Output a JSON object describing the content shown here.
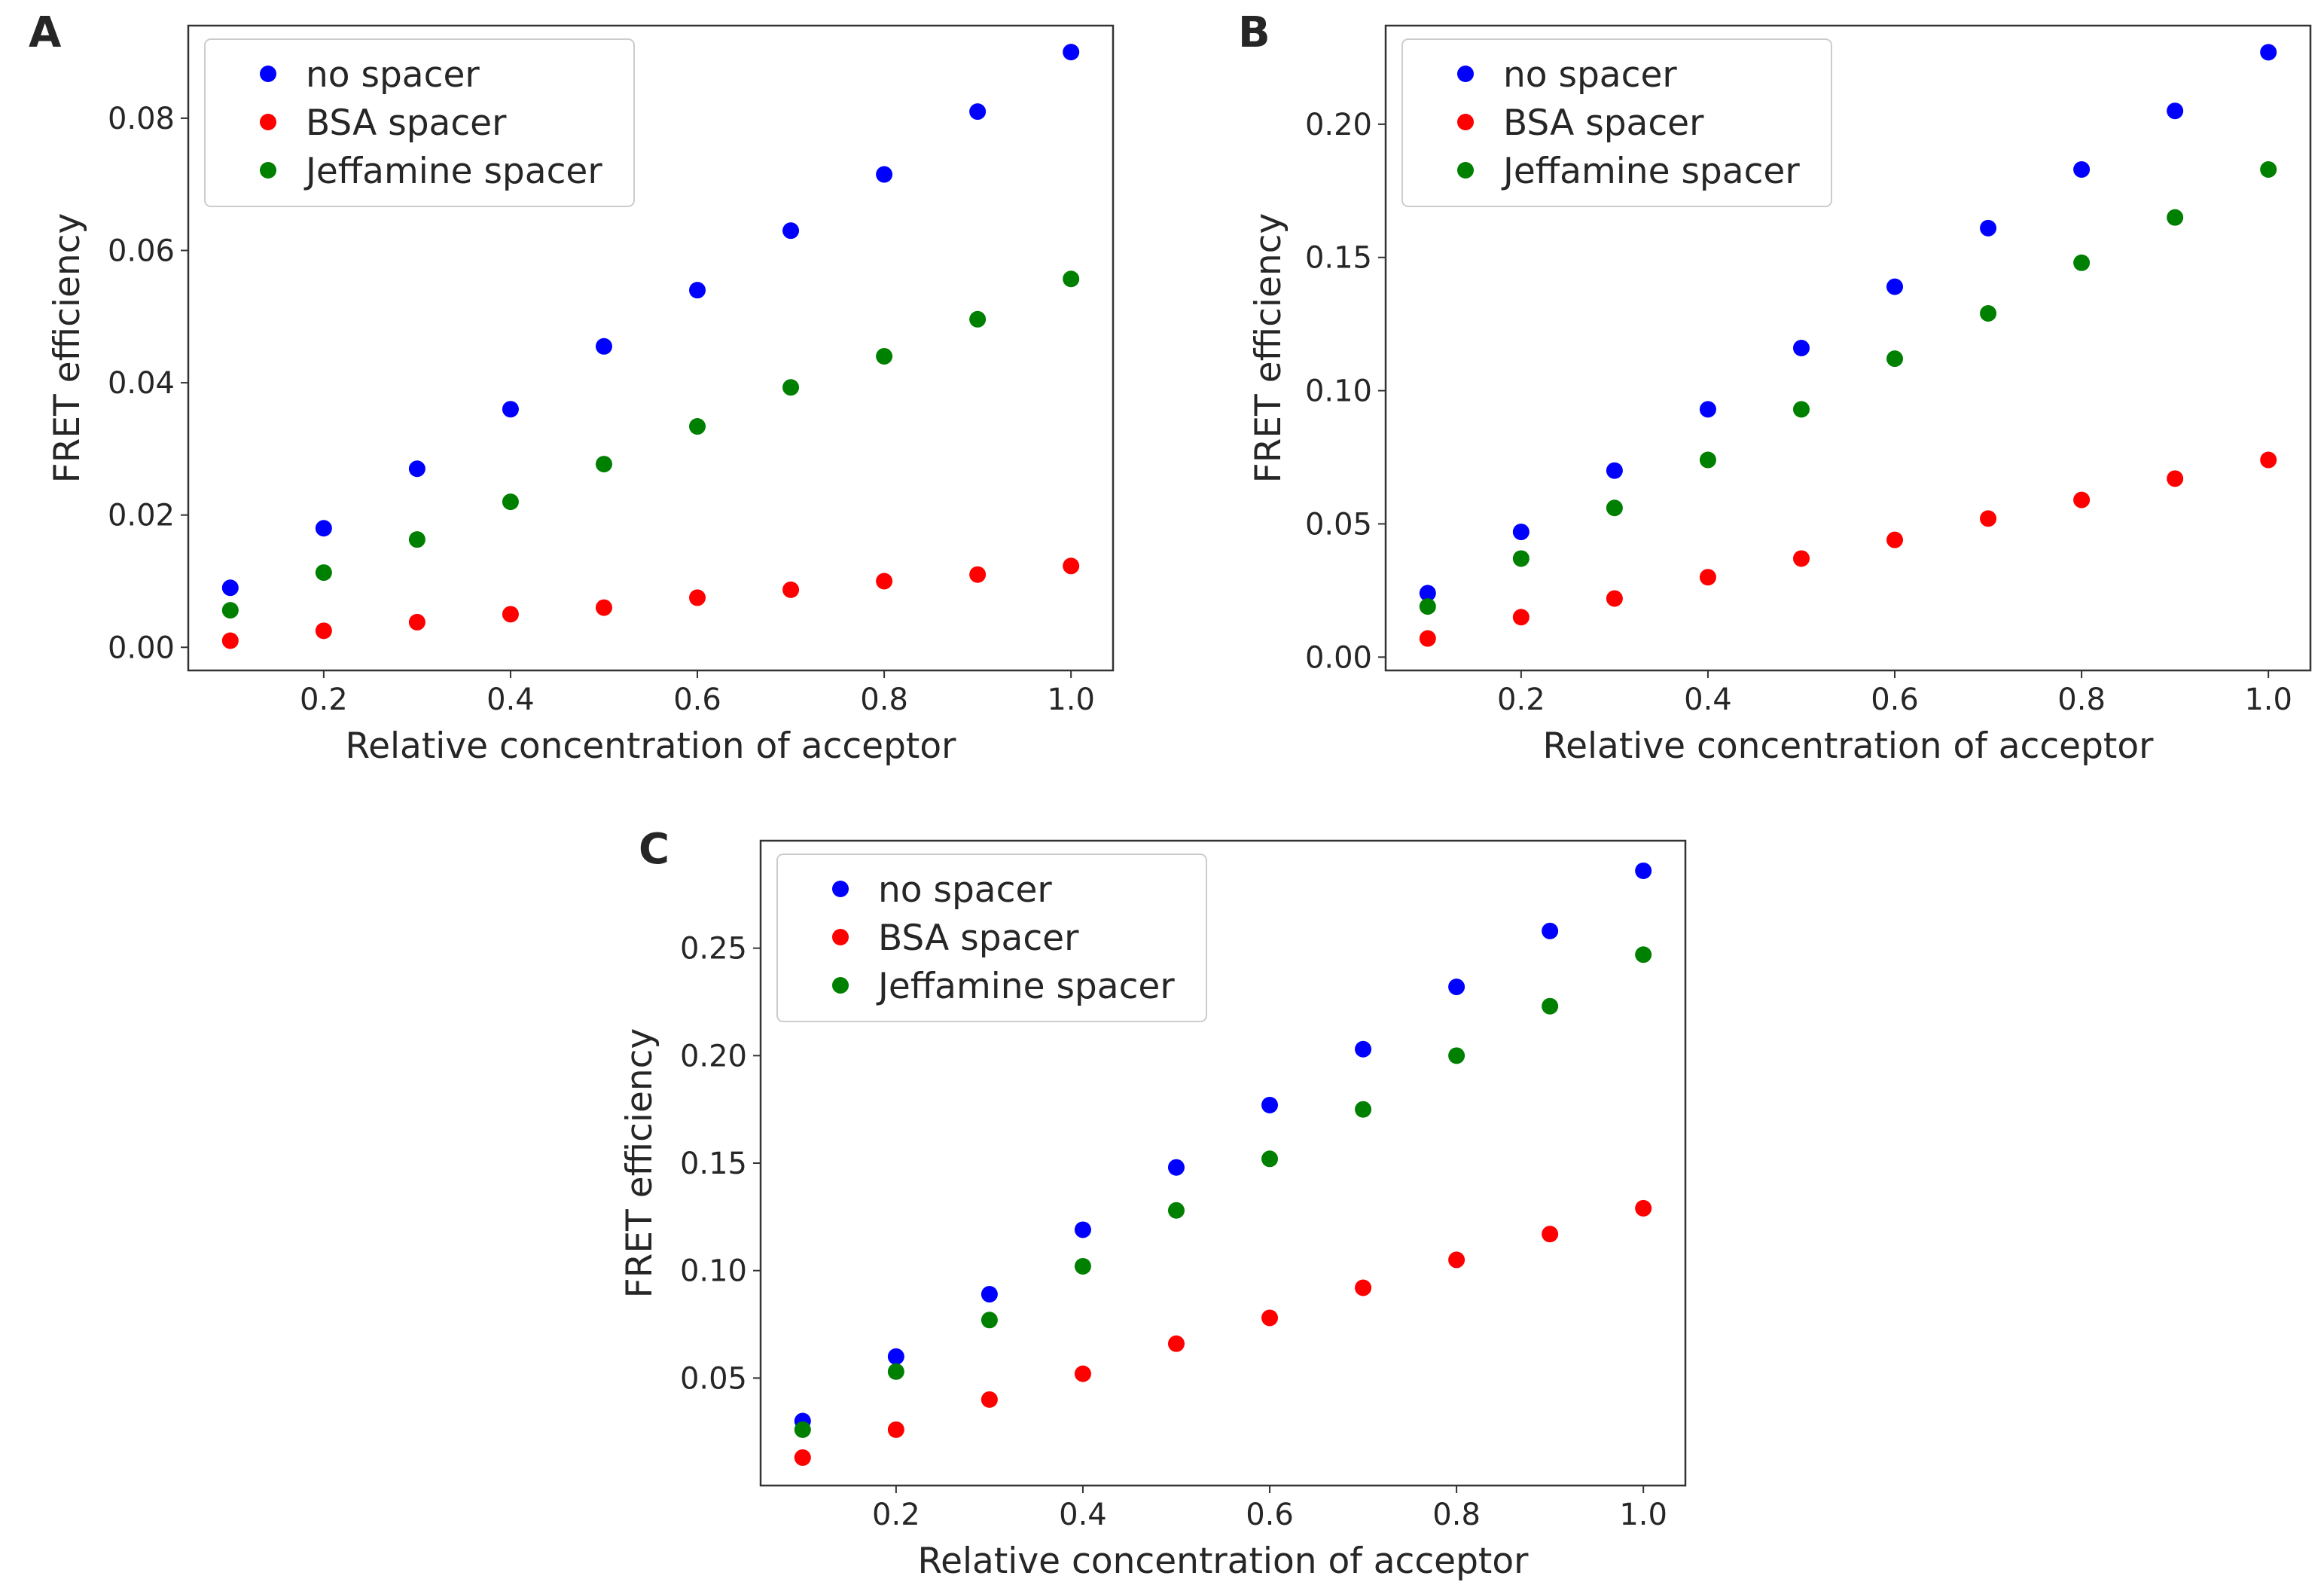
{
  "figure": {
    "panels_count": 3
  },
  "chart_data": [
    {
      "panel": "A",
      "type": "scatter",
      "title": "",
      "xlabel": "Relative concentration of acceptor",
      "ylabel": "FRET efficiency",
      "xlim": [
        0.055,
        1.045
      ],
      "ylim": [
        -0.0035,
        0.094
      ],
      "xticks": [
        0.2,
        0.4,
        0.6,
        0.8,
        1.0
      ],
      "xtick_labels": [
        "0.2",
        "0.4",
        "0.6",
        "0.8",
        "1.0"
      ],
      "yticks": [
        0.0,
        0.02,
        0.04,
        0.06,
        0.08
      ],
      "ytick_labels": [
        "0.00",
        "0.02",
        "0.04",
        "0.06",
        "0.08"
      ],
      "legend_position": "upper-left",
      "x": [
        0.1,
        0.2,
        0.3,
        0.4,
        0.5,
        0.6,
        0.7,
        0.8,
        0.9,
        1.0
      ],
      "series": [
        {
          "name": "no spacer",
          "color": "#0000ff",
          "values": [
            0.009,
            0.018,
            0.027,
            0.036,
            0.0455,
            0.054,
            0.063,
            0.0715,
            0.081,
            0.09
          ]
        },
        {
          "name": "BSA spacer",
          "color": "#ff0000",
          "values": [
            0.001,
            0.0025,
            0.0038,
            0.005,
            0.006,
            0.0075,
            0.0087,
            0.01,
            0.011,
            0.0123
          ]
        },
        {
          "name": "Jeffamine spacer",
          "color": "#008000",
          "values": [
            0.0056,
            0.0113,
            0.0163,
            0.022,
            0.0277,
            0.0334,
            0.0393,
            0.044,
            0.0496,
            0.0557
          ]
        }
      ]
    },
    {
      "panel": "B",
      "type": "scatter",
      "title": "",
      "xlabel": "Relative concentration of acceptor",
      "ylabel": "FRET efficiency",
      "xlim": [
        0.055,
        1.045
      ],
      "ylim": [
        -0.005,
        0.237
      ],
      "xticks": [
        0.2,
        0.4,
        0.6,
        0.8,
        1.0
      ],
      "xtick_labels": [
        "0.2",
        "0.4",
        "0.6",
        "0.8",
        "1.0"
      ],
      "yticks": [
        0.0,
        0.05,
        0.1,
        0.15,
        0.2
      ],
      "ytick_labels": [
        "0.00",
        "0.05",
        "0.10",
        "0.15",
        "0.20"
      ],
      "legend_position": "upper-left",
      "x": [
        0.1,
        0.2,
        0.3,
        0.4,
        0.5,
        0.6,
        0.7,
        0.8,
        0.9,
        1.0
      ],
      "series": [
        {
          "name": "no spacer",
          "color": "#0000ff",
          "values": [
            0.024,
            0.047,
            0.07,
            0.093,
            0.116,
            0.139,
            0.161,
            0.183,
            0.205,
            0.227
          ]
        },
        {
          "name": "BSA spacer",
          "color": "#ff0000",
          "values": [
            0.007,
            0.015,
            0.022,
            0.03,
            0.037,
            0.044,
            0.052,
            0.059,
            0.067,
            0.074
          ]
        },
        {
          "name": "Jeffamine spacer",
          "color": "#008000",
          "values": [
            0.019,
            0.037,
            0.056,
            0.074,
            0.093,
            0.112,
            0.129,
            0.148,
            0.165,
            0.183
          ]
        }
      ]
    },
    {
      "panel": "C",
      "type": "scatter",
      "title": "",
      "xlabel": "Relative concentration of acceptor",
      "ylabel": "FRET efficiency",
      "xlim": [
        0.055,
        1.045
      ],
      "ylim": [
        0.0,
        0.3
      ],
      "xticks": [
        0.2,
        0.4,
        0.6,
        0.8,
        1.0
      ],
      "xtick_labels": [
        "0.2",
        "0.4",
        "0.6",
        "0.8",
        "1.0"
      ],
      "yticks": [
        0.05,
        0.1,
        0.15,
        0.2,
        0.25
      ],
      "ytick_labels": [
        "0.05",
        "0.10",
        "0.15",
        "0.20",
        "0.25"
      ],
      "legend_position": "upper-left",
      "x": [
        0.1,
        0.2,
        0.3,
        0.4,
        0.5,
        0.6,
        0.7,
        0.8,
        0.9,
        1.0
      ],
      "series": [
        {
          "name": "no spacer",
          "color": "#0000ff",
          "values": [
            0.03,
            0.06,
            0.089,
            0.119,
            0.148,
            0.177,
            0.203,
            0.232,
            0.258,
            0.286
          ]
        },
        {
          "name": "BSA spacer",
          "color": "#ff0000",
          "values": [
            0.013,
            0.026,
            0.04,
            0.052,
            0.066,
            0.078,
            0.092,
            0.105,
            0.117,
            0.129
          ]
        },
        {
          "name": "Jeffamine spacer",
          "color": "#008000",
          "values": [
            0.026,
            0.053,
            0.077,
            0.102,
            0.128,
            0.152,
            0.175,
            0.2,
            0.223,
            0.247
          ]
        }
      ]
    }
  ]
}
